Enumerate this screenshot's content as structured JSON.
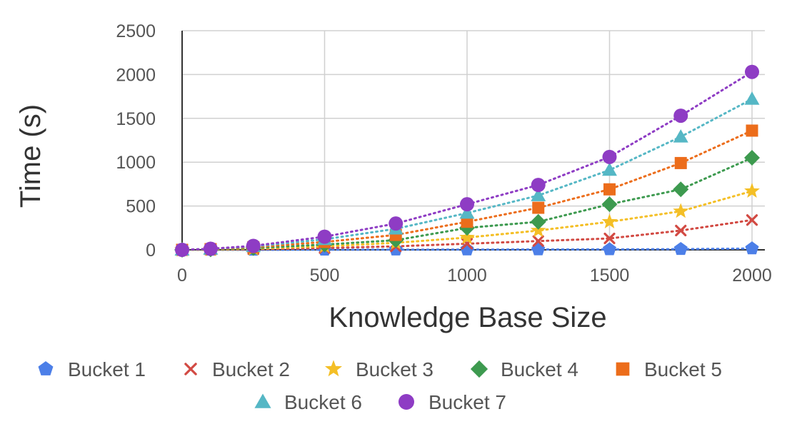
{
  "chart_data": {
    "type": "scatter",
    "title": "",
    "xlabel": "Knowledge Base Size",
    "ylabel": "Time (s)",
    "xlim": [
      0,
      2000
    ],
    "ylim": [
      0,
      2500
    ],
    "xticks": [
      "0",
      "500",
      "1000",
      "1500",
      "2000"
    ],
    "yticks": [
      "0",
      "500",
      "1000",
      "1500",
      "2000",
      "2500"
    ],
    "grid": true,
    "line_style": "dotted",
    "legend_position": "bottom",
    "series": [
      {
        "name": "Bucket 1",
        "marker": "pentagon",
        "color": "#4c7fe8",
        "x": [
          0,
          100,
          250,
          500,
          750,
          1000,
          1250,
          1500,
          1750,
          2000
        ],
        "y": [
          0,
          0,
          0,
          1,
          2,
          3,
          4,
          5,
          8,
          15
        ]
      },
      {
        "name": "Bucket 2",
        "marker": "x",
        "color": "#d24a43",
        "x": [
          0,
          100,
          250,
          500,
          750,
          1000,
          1250,
          1500,
          1750,
          2000
        ],
        "y": [
          0,
          2,
          6,
          20,
          40,
          70,
          100,
          130,
          220,
          340
        ]
      },
      {
        "name": "Bucket 3",
        "marker": "star",
        "color": "#f4bf26",
        "x": [
          0,
          100,
          250,
          500,
          750,
          1000,
          1250,
          1500,
          1750,
          2000
        ],
        "y": [
          0,
          3,
          12,
          40,
          80,
          140,
          220,
          320,
          440,
          670
        ]
      },
      {
        "name": "Bucket 4",
        "marker": "diamond",
        "color": "#3d9a4f",
        "x": [
          0,
          100,
          250,
          500,
          750,
          1000,
          1250,
          1500,
          1750,
          2000
        ],
        "y": [
          0,
          5,
          20,
          60,
          110,
          250,
          320,
          520,
          690,
          1050
        ]
      },
      {
        "name": "Bucket 5",
        "marker": "square",
        "color": "#ec6d1b",
        "x": [
          0,
          100,
          250,
          500,
          750,
          1000,
          1250,
          1500,
          1750,
          2000
        ],
        "y": [
          0,
          8,
          30,
          90,
          170,
          320,
          480,
          690,
          990,
          1360
        ]
      },
      {
        "name": "Bucket 6",
        "marker": "triangle",
        "color": "#55b7c5",
        "x": [
          0,
          100,
          250,
          500,
          750,
          1000,
          1250,
          1500,
          1750,
          2000
        ],
        "y": [
          0,
          10,
          40,
          120,
          240,
          420,
          620,
          910,
          1290,
          1720
        ]
      },
      {
        "name": "Bucket 7",
        "marker": "circle",
        "color": "#8e3cc4",
        "x": [
          0,
          100,
          250,
          500,
          750,
          1000,
          1250,
          1500,
          1750,
          2000
        ],
        "y": [
          0,
          12,
          45,
          150,
          300,
          520,
          740,
          1060,
          1530,
          2030
        ]
      }
    ]
  }
}
